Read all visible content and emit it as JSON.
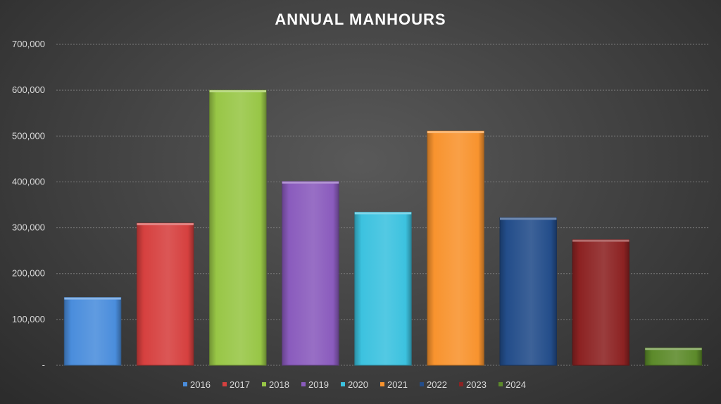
{
  "chart_data": {
    "type": "bar",
    "title": "ANNUAL MANHOURS",
    "xlabel": "",
    "ylabel": "",
    "ylim": [
      0,
      700000
    ],
    "yticks": [
      {
        "value": 0,
        "label": "-"
      },
      {
        "value": 100000,
        "label": "100,000"
      },
      {
        "value": 200000,
        "label": "200,000"
      },
      {
        "value": 300000,
        "label": "300,000"
      },
      {
        "value": 400000,
        "label": "400,000"
      },
      {
        "value": 500000,
        "label": "500,000"
      },
      {
        "value": 600000,
        "label": "600,000"
      },
      {
        "value": 700000,
        "label": "700,000"
      }
    ],
    "grid": true,
    "legend_position": "bottom",
    "categories": [
      "2016",
      "2017",
      "2018",
      "2019",
      "2020",
      "2021",
      "2022",
      "2023",
      "2024"
    ],
    "values": [
      148000,
      310000,
      600000,
      401000,
      334000,
      511000,
      322000,
      274000,
      38000
    ],
    "colors": [
      "#4a8ddc",
      "#d6403f",
      "#98c646",
      "#8a5bbd",
      "#3cc2df",
      "#f8932e",
      "#234d8a",
      "#8c2222",
      "#5c8a2a"
    ]
  }
}
